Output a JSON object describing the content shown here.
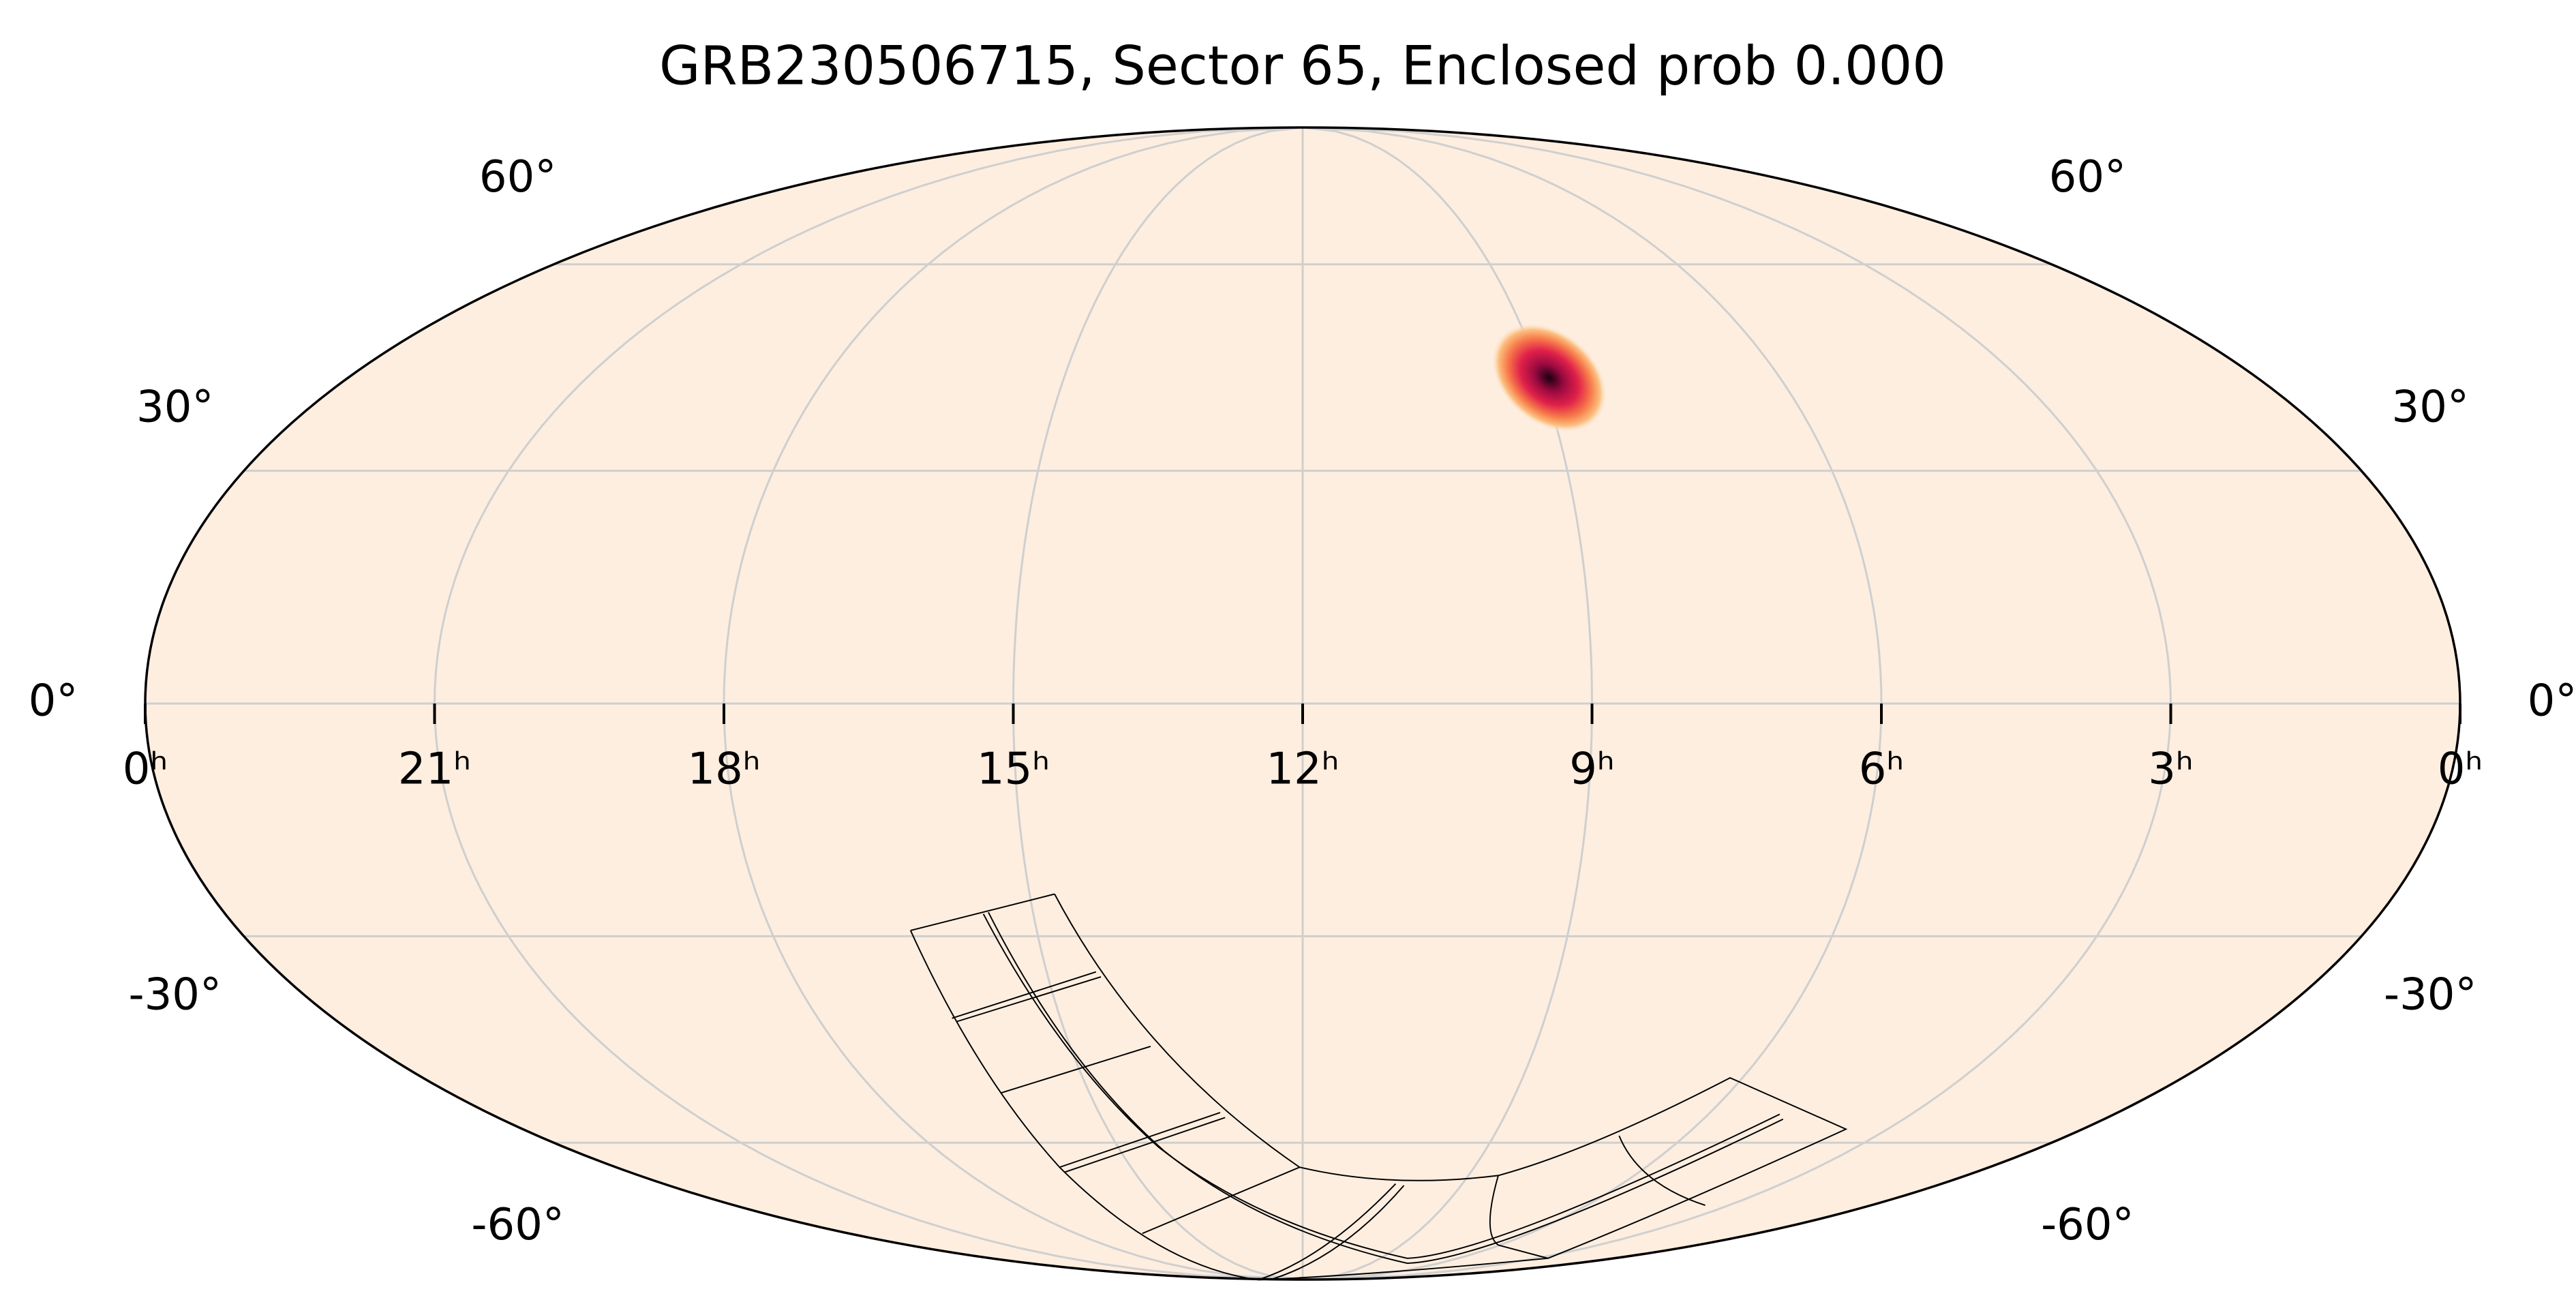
{
  "chart_data": {
    "type": "mollweide",
    "title": "GRB230506715, Sector 65, Enclosed prob 0.000",
    "xlim": [
      24,
      0
    ],
    "ylim": [
      -90,
      90
    ],
    "xticks": [
      {
        "value": 24,
        "label": "0ʰ"
      },
      {
        "value": 21,
        "label": "21ʰ"
      },
      {
        "value": 18,
        "label": "18ʰ"
      },
      {
        "value": 15,
        "label": "15ʰ"
      },
      {
        "value": 12,
        "label": "12ʰ"
      },
      {
        "value": 9,
        "label": "9ʰ"
      },
      {
        "value": 6,
        "label": "6ʰ"
      },
      {
        "value": 3,
        "label": "3ʰ"
      },
      {
        "value": 0,
        "label": "0ʰ"
      }
    ],
    "yticks": [
      {
        "value": 60,
        "label": "60°"
      },
      {
        "value": 30,
        "label": "30°"
      },
      {
        "value": 0,
        "label": "0°"
      },
      {
        "value": -30,
        "label": "-30°"
      },
      {
        "value": -60,
        "label": "-60°"
      }
    ],
    "grid": true,
    "background": "#fdeee0",
    "grid_color": "#cfcfcf",
    "source": {
      "ra": 8.9,
      "dec": 42.8
    }
  }
}
